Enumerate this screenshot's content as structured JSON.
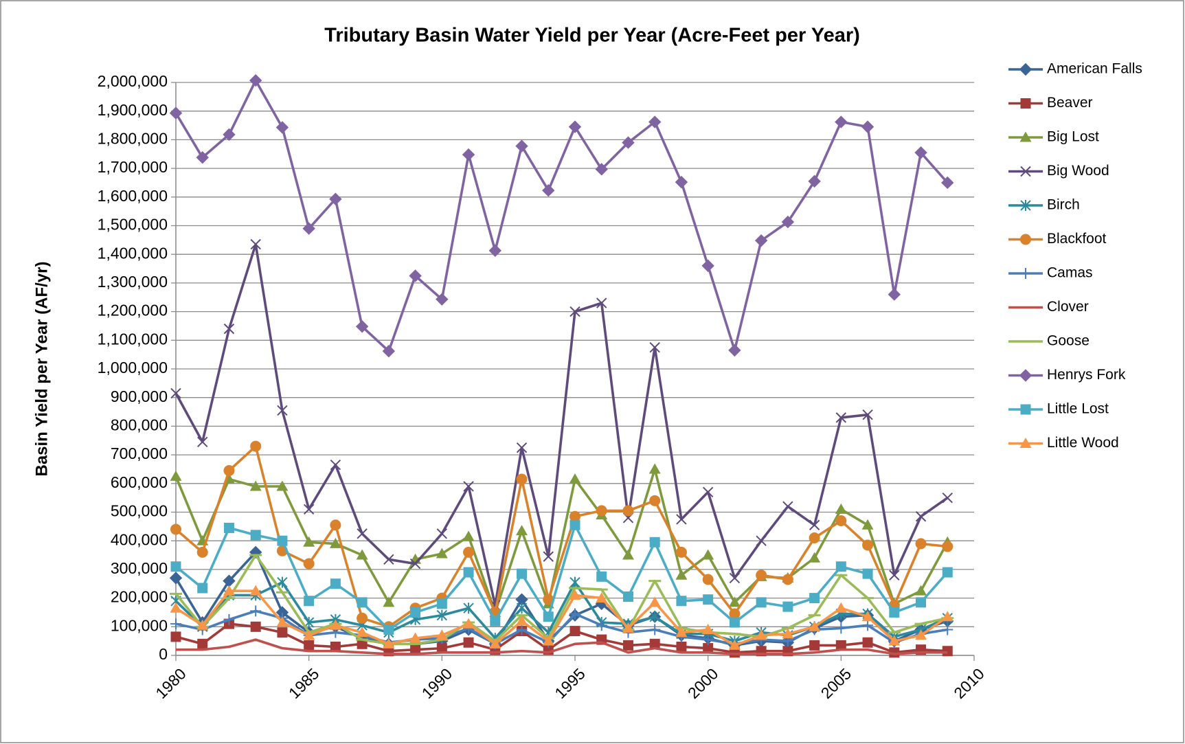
{
  "chart_data": {
    "type": "line",
    "title": "Tributary Basin Water Yield per Year (Acre-Feet per Year)",
    "y_label": "Basin Yield per Year (AF/yr)",
    "grid": true,
    "legend": "right",
    "x": [
      1980,
      1981,
      1982,
      1983,
      1984,
      1985,
      1986,
      1987,
      1988,
      1989,
      1990,
      1991,
      1992,
      1993,
      1994,
      1995,
      1996,
      1997,
      1998,
      1999,
      2000,
      2001,
      2002,
      2003,
      2004,
      2005,
      2006,
      2007,
      2008,
      2009
    ],
    "xlim": [
      1980,
      2010
    ],
    "xticks": [
      1980,
      1985,
      1990,
      1995,
      2000,
      2005,
      2010
    ],
    "ylim": [
      0,
      2000000
    ],
    "yticks": [
      0,
      {
        "value": 100000,
        "label": "100,000"
      },
      {
        "value": 200000,
        "label": "200,000"
      },
      {
        "value": 300000,
        "label": "300,000"
      },
      {
        "value": 400000,
        "label": "400,000"
      },
      {
        "value": 500000,
        "label": "500,000"
      },
      {
        "value": 600000,
        "label": "600,000"
      },
      {
        "value": 700000,
        "label": "700,000"
      },
      {
        "value": 800000,
        "label": "800,000"
      },
      {
        "value": 900000,
        "label": "900,000"
      },
      {
        "value": 1000000,
        "label": "1,000,000"
      },
      {
        "value": 1100000,
        "label": "1,100,000"
      },
      {
        "value": 1200000,
        "label": "1,200,000"
      },
      {
        "value": 1300000,
        "label": "1,300,000"
      },
      {
        "value": 1400000,
        "label": "1,400,000"
      },
      {
        "value": 1500000,
        "label": "1,500,000"
      },
      {
        "value": 1600000,
        "label": "1,600,000"
      },
      {
        "value": 1700000,
        "label": "1,700,000"
      },
      {
        "value": 1800000,
        "label": "1,800,000"
      },
      {
        "value": 1900000,
        "label": "1,900,000"
      },
      {
        "value": 2000000,
        "label": "2,000,000"
      }
    ],
    "series": [
      {
        "name": "American Falls",
        "color": "#3A6496",
        "marker": "diamond",
        "values": [
          270000,
          115000,
          260000,
          360000,
          150000,
          80000,
          100000,
          60000,
          40000,
          40000,
          50000,
          90000,
          40000,
          195000,
          50000,
          140000,
          180000,
          105000,
          135000,
          70000,
          60000,
          35000,
          50000,
          45000,
          95000,
          135000,
          140000,
          50000,
          90000,
          120000
        ]
      },
      {
        "name": "Beaver",
        "color": "#A33A37",
        "marker": "square",
        "values": [
          65000,
          40000,
          110000,
          100000,
          80000,
          35000,
          30000,
          40000,
          15000,
          20000,
          25000,
          45000,
          20000,
          85000,
          20000,
          85000,
          55000,
          35000,
          40000,
          30000,
          25000,
          10000,
          15000,
          15000,
          35000,
          35000,
          45000,
          10000,
          20000,
          15000
        ]
      },
      {
        "name": "Big Lost",
        "color": "#7E9A3D",
        "marker": "triangle",
        "values": [
          625000,
          400000,
          615000,
          590000,
          590000,
          395000,
          390000,
          350000,
          185000,
          335000,
          355000,
          415000,
          150000,
          435000,
          180000,
          615000,
          490000,
          350000,
          650000,
          280000,
          350000,
          185000,
          275000,
          270000,
          340000,
          510000,
          455000,
          180000,
          225000,
          395000
        ]
      },
      {
        "name": "Big Wood",
        "color": "#5E4A7B",
        "marker": "x",
        "values": [
          915000,
          745000,
          1140000,
          1435000,
          855000,
          510000,
          665000,
          425000,
          335000,
          320000,
          425000,
          590000,
          175000,
          725000,
          345000,
          1200000,
          1230000,
          480000,
          1075000,
          475000,
          570000,
          270000,
          400000,
          520000,
          455000,
          830000,
          840000,
          280000,
          485000,
          550000
        ]
      },
      {
        "name": "Birch",
        "color": "#2B8A9C",
        "marker": "asterisk",
        "values": [
          190000,
          100000,
          210000,
          210000,
          255000,
          115000,
          125000,
          105000,
          80000,
          125000,
          140000,
          165000,
          60000,
          165000,
          80000,
          255000,
          115000,
          110000,
          135000,
          75000,
          75000,
          50000,
          80000,
          70000,
          100000,
          145000,
          145000,
          65000,
          90000,
          130000
        ]
      },
      {
        "name": "Blackfoot",
        "color": "#D9822B",
        "marker": "circle",
        "values": [
          440000,
          360000,
          645000,
          730000,
          365000,
          320000,
          455000,
          130000,
          100000,
          165000,
          200000,
          360000,
          150000,
          615000,
          195000,
          485000,
          505000,
          505000,
          540000,
          360000,
          265000,
          145000,
          280000,
          265000,
          410000,
          470000,
          385000,
          175000,
          390000,
          380000
        ]
      },
      {
        "name": "Camas",
        "color": "#4A7EBB",
        "marker": "plus",
        "values": [
          110000,
          90000,
          125000,
          155000,
          130000,
          70000,
          80000,
          70000,
          45000,
          55000,
          60000,
          95000,
          40000,
          90000,
          45000,
          145000,
          105000,
          80000,
          90000,
          65000,
          55000,
          40000,
          55000,
          50000,
          90000,
          95000,
          105000,
          45000,
          75000,
          90000
        ]
      },
      {
        "name": "Clover",
        "color": "#C0504D",
        "marker": "none",
        "values": [
          20000,
          20000,
          30000,
          55000,
          25000,
          15000,
          15000,
          10000,
          5000,
          5000,
          10000,
          10000,
          10000,
          15000,
          10000,
          40000,
          45000,
          10000,
          25000,
          10000,
          10000,
          5000,
          5000,
          5000,
          10000,
          20000,
          20000,
          5000,
          10000,
          10000
        ]
      },
      {
        "name": "Goose",
        "color": "#9BBB59",
        "marker": "dash",
        "values": [
          215000,
          100000,
          200000,
          350000,
          220000,
          80000,
          110000,
          55000,
          40000,
          40000,
          55000,
          115000,
          50000,
          140000,
          60000,
          235000,
          230000,
          90000,
          260000,
          95000,
          80000,
          75000,
          65000,
          95000,
          140000,
          280000,
          200000,
          80000,
          110000,
          130000
        ]
      },
      {
        "name": "Henrys Fork",
        "color": "#8064A2",
        "marker": "diamond",
        "values": [
          1893000,
          1738000,
          1818000,
          2007000,
          1843000,
          1490000,
          1593000,
          1148000,
          1062000,
          1325000,
          1243000,
          1748000,
          1413000,
          1778000,
          1623000,
          1845000,
          1697000,
          1790000,
          1862000,
          1652000,
          1360000,
          1065000,
          1448000,
          1513000,
          1655000,
          1862000,
          1845000,
          1260000,
          1755000,
          1650000
        ]
      },
      {
        "name": "Little Lost",
        "color": "#4BACC6",
        "marker": "square",
        "values": [
          310000,
          235000,
          445000,
          420000,
          400000,
          190000,
          250000,
          185000,
          90000,
          150000,
          180000,
          290000,
          120000,
          285000,
          135000,
          455000,
          275000,
          205000,
          395000,
          190000,
          195000,
          115000,
          185000,
          170000,
          200000,
          310000,
          285000,
          150000,
          185000,
          290000
        ]
      },
      {
        "name": "Little Wood",
        "color": "#F79646",
        "marker": "triangle",
        "values": [
          165000,
          105000,
          225000,
          225000,
          115000,
          70000,
          105000,
          80000,
          40000,
          60000,
          70000,
          110000,
          40000,
          120000,
          50000,
          210000,
          200000,
          95000,
          185000,
          80000,
          90000,
          35000,
          70000,
          75000,
          100000,
          165000,
          135000,
          50000,
          70000,
          135000
        ]
      }
    ]
  }
}
